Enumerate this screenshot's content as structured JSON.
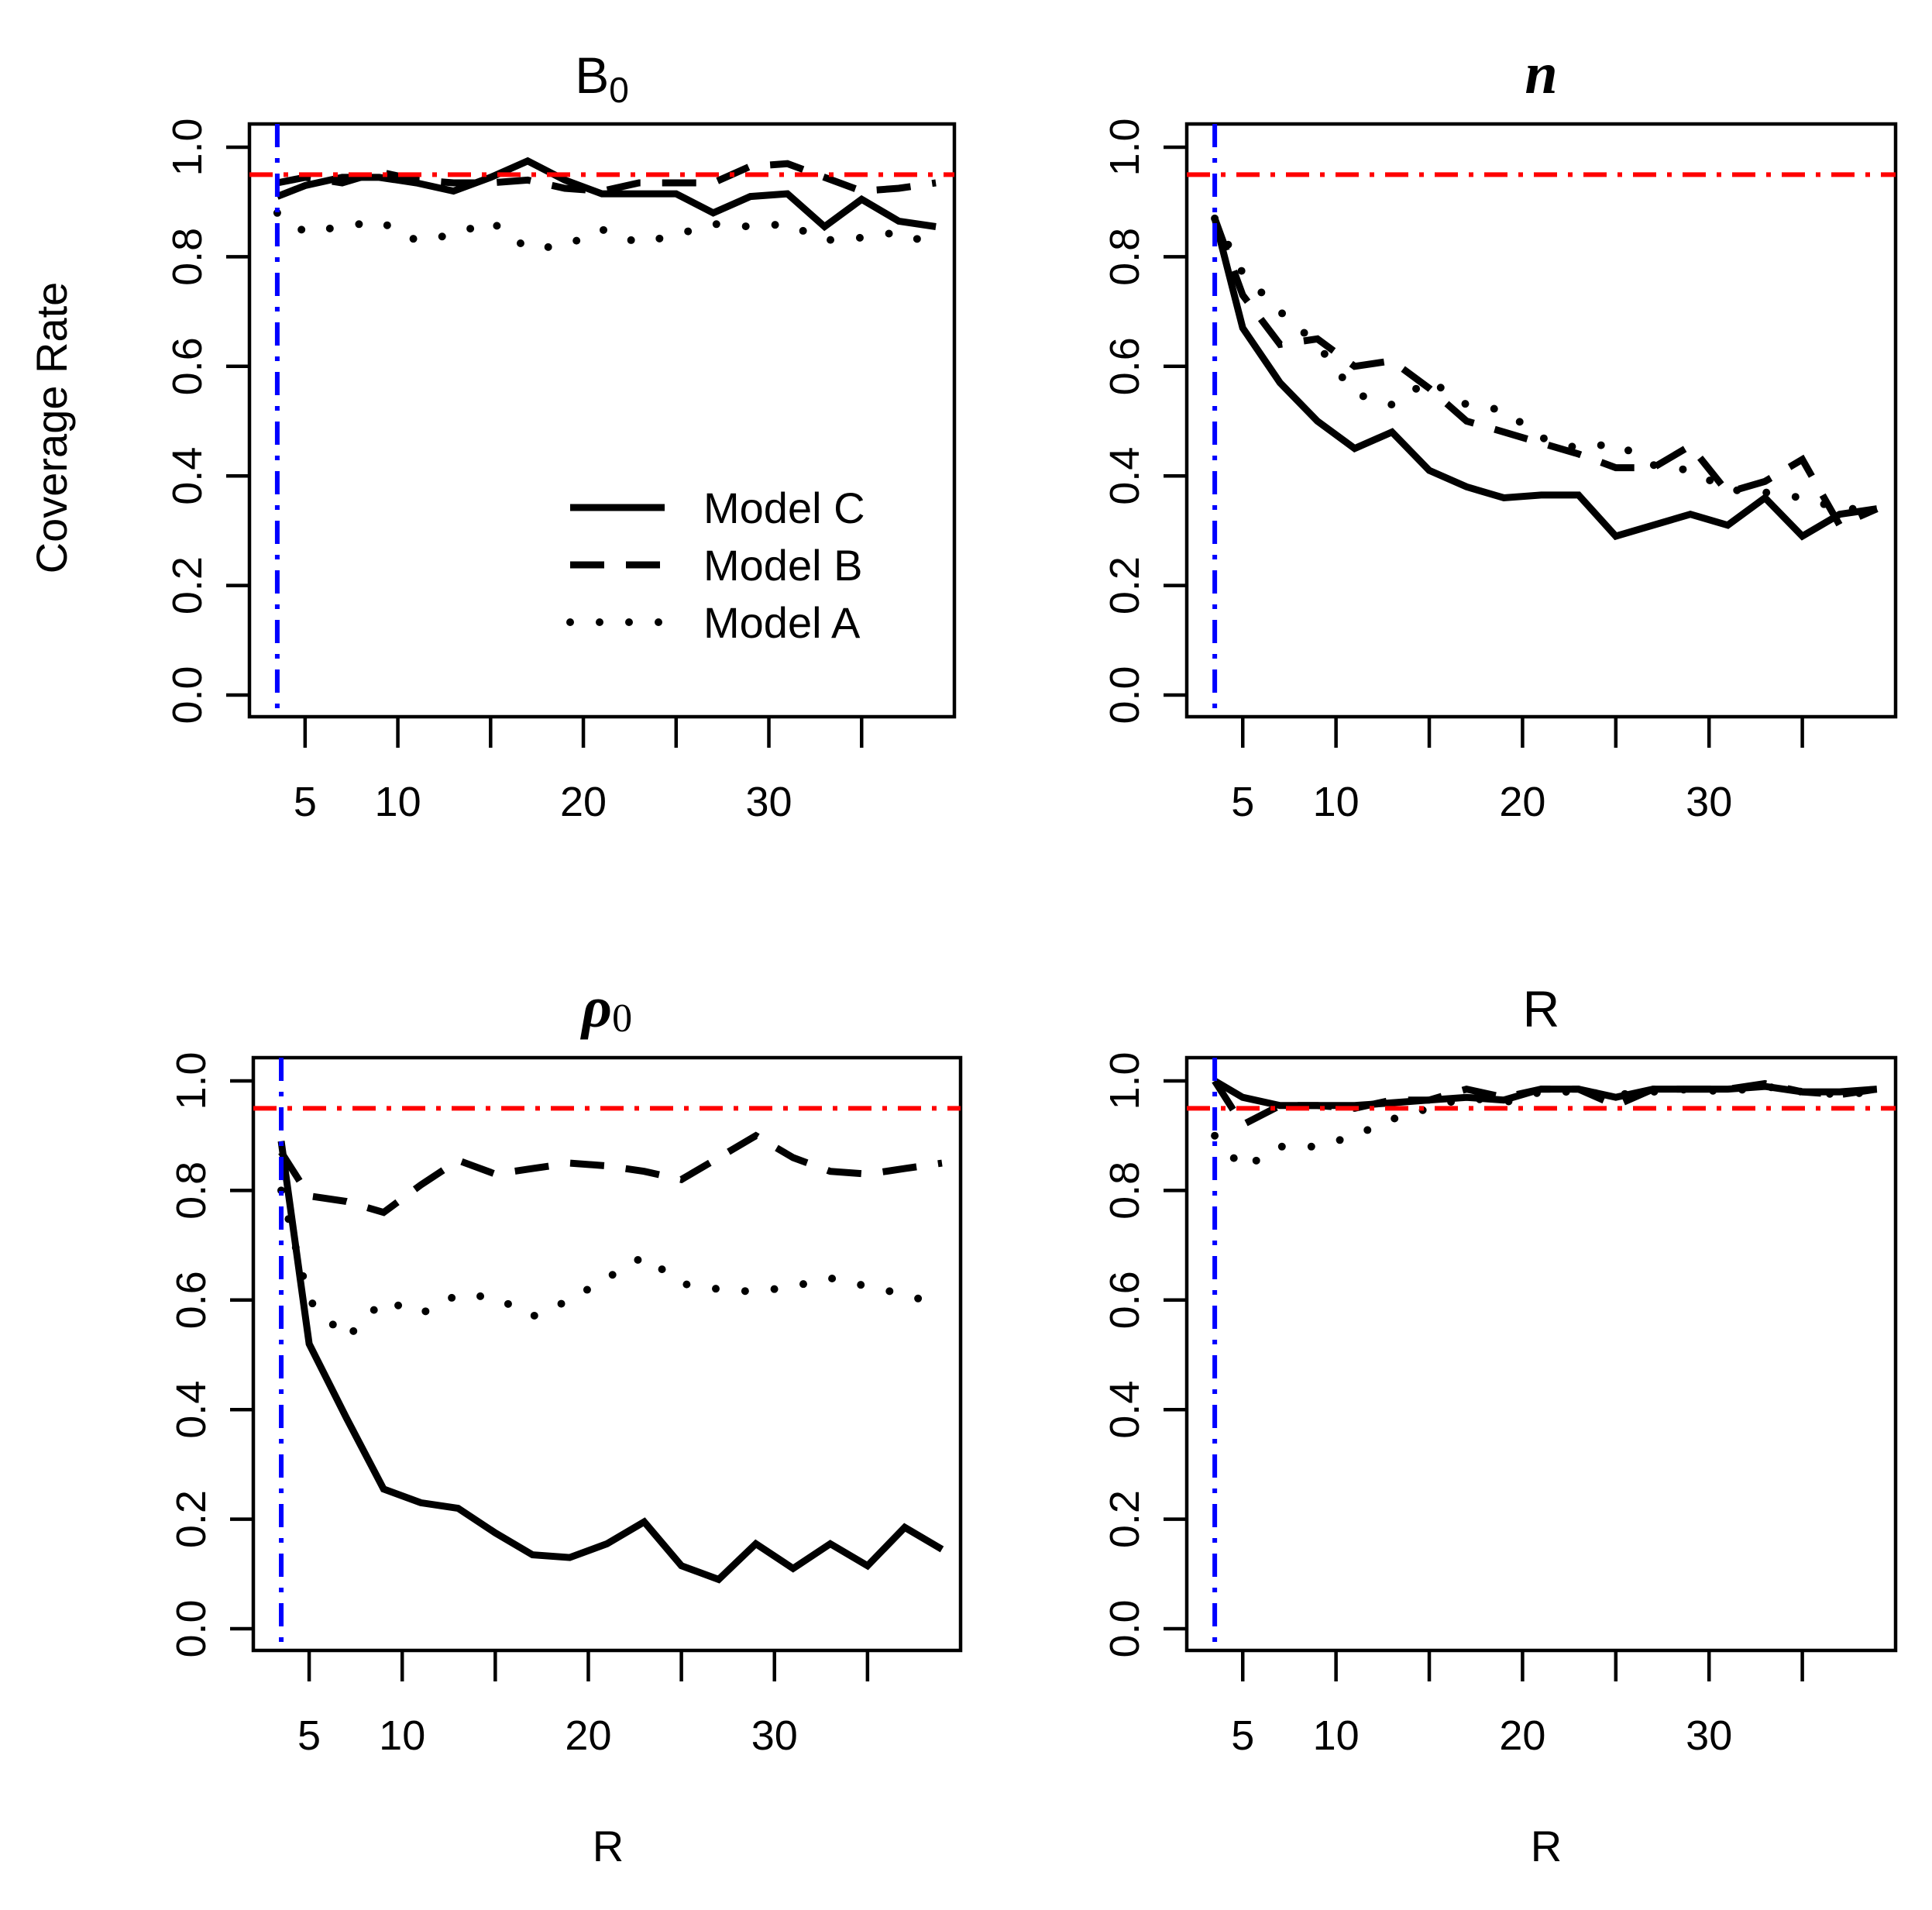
{
  "figure": {
    "ylabel": "Coverage Rate",
    "xlabel": "R",
    "legend": {
      "placement": "bottom-right of first panel",
      "entries": [
        "Model C",
        "Model B",
        "Model A"
      ]
    },
    "colors": {
      "nominal_line": "#ff0000",
      "cutoff_line": "#0000ff",
      "series": "#000000"
    }
  },
  "chart_data": [
    {
      "type": "line",
      "title": "B",
      "title_sub": "0",
      "xlabel": "",
      "ylabel": "Coverage Rate",
      "xlim": [
        2,
        40
      ],
      "ylim": [
        0,
        1
      ],
      "x_tick_values": [
        5,
        10,
        15,
        20,
        25,
        30,
        35
      ],
      "x_tick_labels": [
        "5",
        "10",
        "",
        "20",
        "",
        "30",
        ""
      ],
      "y_ticks": [
        "0.0",
        "0.2",
        "0.4",
        "0.6",
        "0.8",
        "1.0"
      ],
      "nominal": 0.95,
      "cutoff": 3.5,
      "series": [
        {
          "name": "Model C",
          "style": "solid",
          "x": [
            3.5,
            5,
            7,
            9,
            11,
            13,
            15,
            17,
            19,
            21,
            23,
            25,
            27,
            29,
            31,
            33,
            35,
            37,
            39
          ],
          "values": [
            0.91,
            0.93,
            0.945,
            0.945,
            0.935,
            0.92,
            0.945,
            0.975,
            0.94,
            0.915,
            0.915,
            0.915,
            0.88,
            0.91,
            0.915,
            0.855,
            0.905,
            0.865,
            0.855
          ]
        },
        {
          "name": "Model B",
          "style": "dashed",
          "x": [
            3.5,
            5,
            7,
            9,
            11,
            13,
            15,
            17,
            19,
            21,
            23,
            25,
            27,
            29,
            31,
            33,
            35,
            37,
            39
          ],
          "values": [
            0.935,
            0.945,
            0.935,
            0.955,
            0.94,
            0.935,
            0.935,
            0.94,
            0.925,
            0.92,
            0.935,
            0.935,
            0.935,
            0.965,
            0.97,
            0.945,
            0.92,
            0.925,
            0.935
          ]
        },
        {
          "name": "Model A",
          "style": "dotted",
          "x": [
            3.5,
            5,
            7,
            9,
            11,
            13,
            15,
            17,
            19,
            21,
            23,
            25,
            27,
            29,
            31,
            33,
            35,
            37,
            39
          ],
          "values": [
            0.88,
            0.845,
            0.855,
            0.865,
            0.83,
            0.84,
            0.865,
            0.815,
            0.82,
            0.85,
            0.825,
            0.84,
            0.86,
            0.855,
            0.86,
            0.83,
            0.835,
            0.845,
            0.82
          ]
        }
      ]
    },
    {
      "type": "line",
      "title": "n",
      "title_sub": "",
      "xlabel": "",
      "ylabel": "",
      "xlim": [
        2,
        40
      ],
      "ylim": [
        0,
        1
      ],
      "x_tick_values": [
        5,
        10,
        15,
        20,
        25,
        30,
        35
      ],
      "x_tick_labels": [
        "5",
        "10",
        "",
        "20",
        "",
        "30",
        ""
      ],
      "y_ticks": [
        "0.0",
        "0.2",
        "0.4",
        "0.6",
        "0.8",
        "1.0"
      ],
      "nominal": 0.95,
      "cutoff": 3.5,
      "series": [
        {
          "name": "Model C",
          "style": "solid",
          "x": [
            3.5,
            5,
            7,
            9,
            11,
            13,
            15,
            17,
            19,
            21,
            23,
            25,
            27,
            29,
            31,
            33,
            35,
            37,
            39
          ],
          "values": [
            0.87,
            0.67,
            0.57,
            0.5,
            0.45,
            0.48,
            0.41,
            0.38,
            0.36,
            0.365,
            0.365,
            0.29,
            0.31,
            0.33,
            0.31,
            0.36,
            0.29,
            0.33,
            0.34
          ]
        },
        {
          "name": "Model B",
          "style": "dashed",
          "x": [
            3.5,
            5,
            7,
            9,
            11,
            13,
            15,
            17,
            19,
            21,
            23,
            25,
            27,
            29,
            31,
            33,
            35,
            37,
            39
          ],
          "values": [
            0.87,
            0.73,
            0.64,
            0.65,
            0.6,
            0.61,
            0.56,
            0.5,
            0.48,
            0.46,
            0.44,
            0.415,
            0.415,
            0.455,
            0.37,
            0.39,
            0.43,
            0.31,
            0.34
          ]
        },
        {
          "name": "Model A",
          "style": "dotted",
          "x": [
            3.5,
            5,
            7,
            9,
            11,
            13,
            15,
            17,
            19,
            21,
            23,
            25,
            27,
            29,
            31,
            33,
            35,
            37,
            39
          ],
          "values": [
            0.87,
            0.77,
            0.7,
            0.64,
            0.55,
            0.53,
            0.575,
            0.53,
            0.52,
            0.47,
            0.45,
            0.46,
            0.42,
            0.41,
            0.375,
            0.37,
            0.36,
            0.34,
            0.34
          ]
        }
      ]
    },
    {
      "type": "line",
      "title": "ρ",
      "title_sub": "0",
      "xlabel": "R",
      "ylabel": "",
      "xlim": [
        2,
        40
      ],
      "ylim": [
        0,
        1
      ],
      "x_tick_values": [
        5,
        10,
        15,
        20,
        25,
        30,
        35
      ],
      "x_tick_labels": [
        "5",
        "10",
        "",
        "20",
        "",
        "30",
        ""
      ],
      "y_ticks": [
        "0.0",
        "0.2",
        "0.4",
        "0.6",
        "0.8",
        "1.0"
      ],
      "nominal": 0.95,
      "cutoff": 3.5,
      "series": [
        {
          "name": "Model C",
          "style": "solid",
          "x": [
            3.5,
            5,
            7,
            9,
            11,
            13,
            15,
            17,
            19,
            21,
            23,
            25,
            27,
            29,
            31,
            33,
            35,
            37,
            39
          ],
          "values": [
            0.89,
            0.52,
            0.385,
            0.255,
            0.23,
            0.22,
            0.175,
            0.135,
            0.13,
            0.155,
            0.195,
            0.115,
            0.09,
            0.155,
            0.11,
            0.155,
            0.115,
            0.185,
            0.145
          ]
        },
        {
          "name": "Model B",
          "style": "dashed",
          "x": [
            3.5,
            5,
            7,
            9,
            11,
            13,
            15,
            17,
            19,
            21,
            23,
            25,
            27,
            29,
            31,
            33,
            35,
            37,
            39
          ],
          "values": [
            0.87,
            0.79,
            0.78,
            0.76,
            0.81,
            0.855,
            0.83,
            0.84,
            0.85,
            0.845,
            0.835,
            0.82,
            0.86,
            0.9,
            0.86,
            0.835,
            0.83,
            0.84,
            0.85
          ]
        },
        {
          "name": "Model A",
          "style": "dotted",
          "x": [
            3.5,
            5,
            7,
            9,
            11,
            13,
            15,
            17,
            19,
            21,
            23,
            25,
            27,
            29,
            31,
            33,
            35,
            37,
            39
          ],
          "values": [
            0.8,
            0.6,
            0.53,
            0.6,
            0.575,
            0.61,
            0.605,
            0.57,
            0.6,
            0.64,
            0.68,
            0.63,
            0.62,
            0.615,
            0.625,
            0.64,
            0.625,
            0.61,
            0.59
          ]
        }
      ]
    },
    {
      "type": "line",
      "title": "R",
      "title_sub": "",
      "xlabel": "R",
      "ylabel": "",
      "xlim": [
        2,
        40
      ],
      "ylim": [
        0,
        1
      ],
      "x_tick_values": [
        5,
        10,
        15,
        20,
        25,
        30,
        35
      ],
      "x_tick_labels": [
        "5",
        "10",
        "",
        "20",
        "",
        "30",
        ""
      ],
      "y_ticks": [
        "0.0",
        "0.2",
        "0.4",
        "0.6",
        "0.8",
        "1.0"
      ],
      "nominal": 0.95,
      "cutoff": 3.5,
      "series": [
        {
          "name": "Model C",
          "style": "solid",
          "x": [
            3.5,
            5,
            7,
            9,
            11,
            13,
            15,
            17,
            19,
            21,
            23,
            25,
            27,
            29,
            31,
            33,
            35,
            37,
            39
          ],
          "values": [
            1.0,
            0.97,
            0.955,
            0.955,
            0.955,
            0.96,
            0.965,
            0.97,
            0.965,
            0.985,
            0.985,
            0.97,
            0.985,
            0.985,
            0.985,
            0.99,
            0.98,
            0.98,
            0.985
          ]
        },
        {
          "name": "Model B",
          "style": "dashed",
          "x": [
            3.5,
            5,
            7,
            9,
            11,
            13,
            15,
            17,
            19,
            21,
            23,
            25,
            27,
            29,
            31,
            33,
            35,
            37,
            39
          ],
          "values": [
            1.0,
            0.92,
            0.955,
            0.955,
            0.95,
            0.965,
            0.965,
            0.985,
            0.97,
            0.985,
            0.985,
            0.955,
            0.985,
            0.985,
            0.985,
            0.995,
            0.98,
            0.975,
            0.985
          ]
        },
        {
          "name": "Model A",
          "style": "dotted",
          "x": [
            3.5,
            5,
            7,
            9,
            11,
            13,
            15,
            17,
            19,
            21,
            23,
            25,
            27,
            29,
            31,
            33,
            35,
            37,
            39
          ],
          "values": [
            0.9,
            0.84,
            0.88,
            0.88,
            0.9,
            0.93,
            0.95,
            0.97,
            0.96,
            0.98,
            0.98,
            0.975,
            0.98,
            0.985,
            0.98,
            0.99,
            0.98,
            0.975,
            0.98
          ]
        }
      ]
    }
  ]
}
